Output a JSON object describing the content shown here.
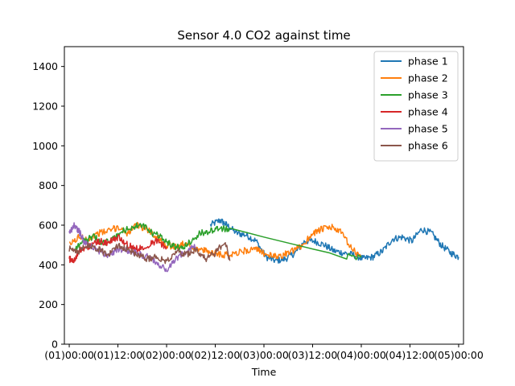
{
  "chart_data": {
    "type": "line",
    "title": "Sensor 4.0 CO2 against  time",
    "xlabel": "Time",
    "ylabel": "",
    "xlim": [
      -0.05,
      4.05
    ],
    "ylim": [
      0,
      1500
    ],
    "x_unit": "days",
    "x_ticks": [
      {
        "value": 0.0,
        "label": "(01)00:00"
      },
      {
        "value": 0.5,
        "label": "(01)12:00"
      },
      {
        "value": 1.0,
        "label": "(02)00:00"
      },
      {
        "value": 1.5,
        "label": "(02)12:00"
      },
      {
        "value": 2.0,
        "label": "(03)00:00"
      },
      {
        "value": 2.5,
        "label": "(03)12:00"
      },
      {
        "value": 3.0,
        "label": "(04)00:00"
      },
      {
        "value": 3.5,
        "label": "(04)12:00"
      },
      {
        "value": 4.0,
        "label": "(05)00:00"
      }
    ],
    "y_ticks": [
      0,
      200,
      400,
      600,
      800,
      1000,
      1200,
      1400
    ],
    "grid": false,
    "legend_position": "top-right",
    "series": [
      {
        "name": "phase 1",
        "color": "#1f77b4",
        "x": [
          1.45,
          1.55,
          1.62,
          1.72,
          1.82,
          1.92,
          2.02,
          2.12,
          2.22,
          2.32,
          2.42,
          2.52,
          2.62,
          2.72,
          2.82,
          2.92,
          3.02,
          3.12,
          3.22,
          3.32,
          3.42,
          3.52,
          3.62,
          3.72,
          3.82,
          3.92,
          4.0
        ],
        "y": [
          600,
          625,
          600,
          560,
          550,
          520,
          440,
          420,
          430,
          460,
          520,
          520,
          500,
          470,
          460,
          450,
          430,
          440,
          470,
          530,
          540,
          520,
          580,
          560,
          500,
          460,
          440
        ]
      },
      {
        "name": "phase 2",
        "color": "#ff7f0e",
        "x": [
          0.0,
          0.1,
          0.2,
          0.3,
          0.4,
          0.5,
          0.6,
          0.7,
          0.8,
          0.9,
          1.0,
          1.1,
          1.2,
          1.3,
          1.4,
          1.5,
          1.6,
          1.7,
          1.8,
          1.9,
          2.0,
          2.1,
          2.2,
          2.3,
          2.4,
          2.5,
          2.6,
          2.7,
          2.8,
          2.9,
          3.0
        ],
        "y": [
          500,
          540,
          530,
          560,
          570,
          590,
          560,
          600,
          580,
          540,
          500,
          490,
          510,
          480,
          470,
          460,
          450,
          460,
          470,
          480,
          460,
          440,
          450,
          470,
          500,
          560,
          580,
          590,
          560,
          480,
          440
        ]
      },
      {
        "name": "phase 3",
        "color": "#2ca02c",
        "x": [
          0.05,
          0.15,
          0.25,
          0.35,
          0.45,
          0.55,
          0.65,
          0.75,
          0.85,
          0.95,
          1.05,
          1.15,
          1.25,
          1.35,
          1.45,
          1.55,
          1.65,
          2.0,
          2.5,
          2.85,
          3.0
        ],
        "y": [
          480,
          520,
          540,
          510,
          530,
          570,
          590,
          600,
          560,
          540,
          500,
          480,
          520,
          560,
          570,
          580,
          585,
          540,
          480,
          440,
          445
        ]
      },
      {
        "name": "phase 4",
        "color": "#d62728",
        "x": [
          0.0,
          0.05,
          0.1,
          0.2,
          0.3,
          0.4,
          0.5,
          0.6,
          0.7,
          0.8,
          0.9,
          1.0
        ],
        "y": [
          430,
          420,
          470,
          490,
          520,
          510,
          540,
          500,
          480,
          500,
          520,
          490
        ]
      },
      {
        "name": "phase 5",
        "color": "#9467bd",
        "x": [
          0.0,
          0.05,
          0.1,
          0.15,
          0.2,
          0.3,
          0.4,
          0.5,
          0.6,
          0.7,
          0.8,
          0.9,
          1.0,
          1.1,
          1.2,
          1.3
        ],
        "y": [
          560,
          600,
          570,
          520,
          500,
          470,
          450,
          480,
          470,
          460,
          440,
          410,
          370,
          430,
          470,
          490
        ]
      },
      {
        "name": "phase 6",
        "color": "#8c564b",
        "x": [
          0.0,
          0.1,
          0.2,
          0.3,
          0.4,
          0.5,
          0.6,
          0.7,
          0.8,
          0.9,
          1.0,
          1.1,
          1.2,
          1.3,
          1.4,
          1.5,
          1.6,
          1.65
        ],
        "y": [
          480,
          470,
          500,
          480,
          450,
          500,
          480,
          450,
          430,
          440,
          420,
          470,
          450,
          480,
          430,
          460,
          520,
          420
        ]
      }
    ]
  }
}
